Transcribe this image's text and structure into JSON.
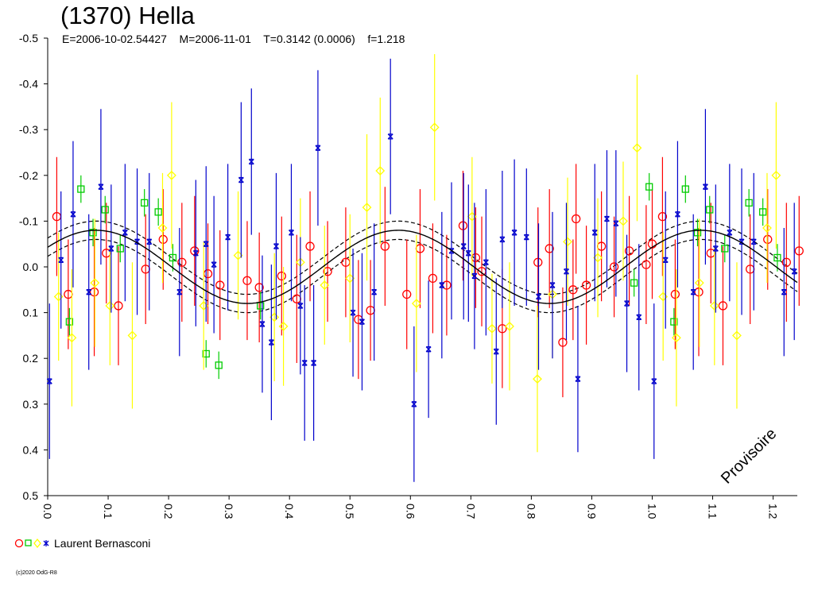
{
  "chart_data": {
    "type": "scatter",
    "title": "(1370) Hella",
    "subtitle": "E=2006-10-02.54427    M=2006-11-01    T=0.3142 (0.0006)    f=1.218",
    "xlabel": "",
    "ylabel": "",
    "xlim": [
      0,
      1.24
    ],
    "ylim": [
      0.5,
      -0.5
    ],
    "y_inverted": true,
    "x_ticks": [
      "0.0",
      "0.1",
      "0.2",
      "0.3",
      "0.4",
      "0.5",
      "0.6",
      "0.7",
      "0.8",
      "0.9",
      "1.0",
      "1.1",
      "1.2"
    ],
    "y_ticks": [
      "-0.5",
      "-0.4",
      "-0.3",
      "-0.2",
      "-0.1",
      "0.0",
      "0.1",
      "0.2",
      "0.3",
      "0.4",
      "0.5"
    ],
    "grid": false,
    "fit_curve": {
      "mean": 0.0,
      "amplitude": 0.08,
      "phase_of_max_brightness": 0.08,
      "cycles_per_phase": 2,
      "envelope": 0.02
    },
    "series": [
      {
        "name": "Laurent Bernasconi",
        "marker": "circle",
        "color": "#ff0000",
        "points": [
          {
            "x": 0.015,
            "y": -0.11,
            "err": 0.13
          },
          {
            "x": 0.034,
            "y": 0.06,
            "err": 0.12
          },
          {
            "x": 0.077,
            "y": 0.055,
            "err": 0.14
          },
          {
            "x": 0.097,
            "y": -0.03,
            "err": 0.11
          },
          {
            "x": 0.117,
            "y": 0.085,
            "err": 0.13
          },
          {
            "x": 0.162,
            "y": 0.005,
            "err": 0.12
          },
          {
            "x": 0.191,
            "y": -0.06,
            "err": 0.11
          },
          {
            "x": 0.222,
            "y": -0.01,
            "err": 0.13
          },
          {
            "x": 0.243,
            "y": -0.035,
            "err": 0.12
          },
          {
            "x": 0.265,
            "y": 0.015,
            "err": 0.11
          },
          {
            "x": 0.285,
            "y": 0.04,
            "err": 0.12
          },
          {
            "x": 0.33,
            "y": 0.03,
            "err": 0.13
          },
          {
            "x": 0.35,
            "y": 0.045,
            "err": 0.12
          },
          {
            "x": 0.387,
            "y": 0.02,
            "err": 0.13
          },
          {
            "x": 0.412,
            "y": 0.07,
            "err": 0.14
          },
          {
            "x": 0.434,
            "y": -0.045,
            "err": 0.12
          },
          {
            "x": 0.463,
            "y": 0.01,
            "err": 0.11
          },
          {
            "x": 0.493,
            "y": -0.01,
            "err": 0.12
          },
          {
            "x": 0.514,
            "y": 0.115,
            "err": 0.13
          },
          {
            "x": 0.534,
            "y": 0.095,
            "err": 0.11
          },
          {
            "x": 0.558,
            "y": -0.045,
            "err": 0.13
          },
          {
            "x": 0.594,
            "y": 0.06,
            "err": 0.12
          },
          {
            "x": 0.616,
            "y": -0.04,
            "err": 0.13
          },
          {
            "x": 0.637,
            "y": 0.025,
            "err": 0.12
          },
          {
            "x": 0.66,
            "y": 0.04,
            "err": 0.11
          },
          {
            "x": 0.687,
            "y": -0.09,
            "err": 0.12
          },
          {
            "x": 0.708,
            "y": -0.02,
            "err": 0.11
          },
          {
            "x": 0.718,
            "y": 0.01,
            "err": 0.12
          },
          {
            "x": 0.752,
            "y": 0.135,
            "err": 0.13
          },
          {
            "x": 0.811,
            "y": -0.01,
            "err": 0.12
          },
          {
            "x": 0.83,
            "y": -0.04,
            "err": 0.13
          },
          {
            "x": 0.852,
            "y": 0.165,
            "err": 0.12
          },
          {
            "x": 0.869,
            "y": 0.05,
            "err": 0.11
          },
          {
            "x": 0.874,
            "y": -0.105,
            "err": 0.12
          },
          {
            "x": 0.891,
            "y": 0.04,
            "err": 0.13
          },
          {
            "x": 0.916,
            "y": -0.045,
            "err": 0.12
          },
          {
            "x": 0.937,
            "y": 0.0,
            "err": 0.11
          },
          {
            "x": 0.962,
            "y": -0.035,
            "err": 0.12
          },
          {
            "x": 0.99,
            "y": -0.005,
            "err": 0.13
          },
          {
            "x": 1.0,
            "y": -0.05,
            "err": 0.12
          },
          {
            "x": 1.017,
            "y": -0.11,
            "err": 0.13
          },
          {
            "x": 1.038,
            "y": 0.06,
            "err": 0.12
          },
          {
            "x": 1.077,
            "y": 0.055,
            "err": 0.14
          },
          {
            "x": 1.097,
            "y": -0.03,
            "err": 0.11
          },
          {
            "x": 1.117,
            "y": 0.085,
            "err": 0.13
          },
          {
            "x": 1.162,
            "y": 0.005,
            "err": 0.12
          },
          {
            "x": 1.191,
            "y": -0.06,
            "err": 0.11
          },
          {
            "x": 1.222,
            "y": -0.01,
            "err": 0.13
          },
          {
            "x": 1.243,
            "y": -0.035,
            "err": 0.12
          }
        ]
      },
      {
        "name": "Laurent Bernasconi",
        "marker": "square",
        "color": "#00cc00",
        "points": [
          {
            "x": 0.036,
            "y": 0.12,
            "err": 0.03
          },
          {
            "x": 0.055,
            "y": -0.17,
            "err": 0.03
          },
          {
            "x": 0.075,
            "y": -0.075,
            "err": 0.03
          },
          {
            "x": 0.095,
            "y": -0.125,
            "err": 0.03
          },
          {
            "x": 0.12,
            "y": -0.04,
            "err": 0.03
          },
          {
            "x": 0.16,
            "y": -0.14,
            "err": 0.03
          },
          {
            "x": 0.183,
            "y": -0.12,
            "err": 0.03
          },
          {
            "x": 0.207,
            "y": -0.02,
            "err": 0.03
          },
          {
            "x": 0.262,
            "y": 0.19,
            "err": 0.03
          },
          {
            "x": 0.283,
            "y": 0.215,
            "err": 0.03
          },
          {
            "x": 0.352,
            "y": 0.085,
            "err": 0.03
          },
          {
            "x": 0.97,
            "y": 0.035,
            "err": 0.03
          },
          {
            "x": 0.995,
            "y": -0.175,
            "err": 0.03
          },
          {
            "x": 1.036,
            "y": 0.12,
            "err": 0.03
          },
          {
            "x": 1.055,
            "y": -0.17,
            "err": 0.03
          },
          {
            "x": 1.075,
            "y": -0.075,
            "err": 0.03
          },
          {
            "x": 1.095,
            "y": -0.125,
            "err": 0.03
          },
          {
            "x": 1.12,
            "y": -0.04,
            "err": 0.03
          },
          {
            "x": 1.16,
            "y": -0.14,
            "err": 0.03
          },
          {
            "x": 1.183,
            "y": -0.12,
            "err": 0.03
          },
          {
            "x": 1.207,
            "y": -0.02,
            "err": 0.03
          }
        ]
      },
      {
        "name": "Laurent Bernasconi",
        "marker": "diamond",
        "color": "#ffff00",
        "points": [
          {
            "x": 0.018,
            "y": 0.065,
            "err": 0.14
          },
          {
            "x": 0.04,
            "y": 0.155,
            "err": 0.15
          },
          {
            "x": 0.078,
            "y": 0.035,
            "err": 0.14
          },
          {
            "x": 0.103,
            "y": 0.085,
            "err": 0.13
          },
          {
            "x": 0.14,
            "y": 0.15,
            "err": 0.16
          },
          {
            "x": 0.19,
            "y": -0.085,
            "err": 0.12
          },
          {
            "x": 0.205,
            "y": -0.2,
            "err": 0.16
          },
          {
            "x": 0.258,
            "y": 0.085,
            "err": 0.14
          },
          {
            "x": 0.315,
            "y": -0.025,
            "err": 0.14
          },
          {
            "x": 0.375,
            "y": 0.11,
            "err": 0.14
          },
          {
            "x": 0.39,
            "y": 0.13,
            "err": 0.13
          },
          {
            "x": 0.418,
            "y": -0.01,
            "err": 0.14
          },
          {
            "x": 0.458,
            "y": 0.04,
            "err": 0.13
          },
          {
            "x": 0.5,
            "y": 0.025,
            "err": 0.14
          },
          {
            "x": 0.528,
            "y": -0.13,
            "err": 0.16
          },
          {
            "x": 0.55,
            "y": -0.21,
            "err": 0.16
          },
          {
            "x": 0.61,
            "y": 0.08,
            "err": 0.15
          },
          {
            "x": 0.64,
            "y": -0.305,
            "err": 0.16
          },
          {
            "x": 0.702,
            "y": -0.11,
            "err": 0.13
          },
          {
            "x": 0.735,
            "y": 0.135,
            "err": 0.12
          },
          {
            "x": 0.764,
            "y": 0.13,
            "err": 0.14
          },
          {
            "x": 0.81,
            "y": 0.245,
            "err": 0.16
          },
          {
            "x": 0.835,
            "y": 0.06,
            "err": 0.14
          },
          {
            "x": 0.86,
            "y": -0.055,
            "err": 0.14
          },
          {
            "x": 0.91,
            "y": -0.02,
            "err": 0.13
          },
          {
            "x": 0.952,
            "y": -0.1,
            "err": 0.13
          },
          {
            "x": 0.975,
            "y": -0.26,
            "err": 0.16
          },
          {
            "x": 1.018,
            "y": 0.065,
            "err": 0.14
          },
          {
            "x": 1.04,
            "y": 0.155,
            "err": 0.15
          },
          {
            "x": 1.078,
            "y": 0.035,
            "err": 0.14
          },
          {
            "x": 1.103,
            "y": 0.085,
            "err": 0.13
          },
          {
            "x": 1.14,
            "y": 0.15,
            "err": 0.16
          },
          {
            "x": 1.19,
            "y": -0.085,
            "err": 0.12
          },
          {
            "x": 1.205,
            "y": -0.2,
            "err": 0.16
          }
        ]
      },
      {
        "name": "Laurent Bernasconi",
        "marker": "star",
        "color": "#0000cc",
        "points": [
          {
            "x": 0.003,
            "y": 0.25,
            "err": 0.17
          },
          {
            "x": 0.022,
            "y": -0.015,
            "err": 0.15
          },
          {
            "x": 0.042,
            "y": -0.115,
            "err": 0.16
          },
          {
            "x": 0.068,
            "y": 0.055,
            "err": 0.17
          },
          {
            "x": 0.088,
            "y": -0.175,
            "err": 0.17
          },
          {
            "x": 0.105,
            "y": -0.04,
            "err": 0.14
          },
          {
            "x": 0.128,
            "y": -0.075,
            "err": 0.15
          },
          {
            "x": 0.148,
            "y": -0.055,
            "err": 0.16
          },
          {
            "x": 0.168,
            "y": -0.055,
            "err": 0.15
          },
          {
            "x": 0.218,
            "y": 0.055,
            "err": 0.14
          },
          {
            "x": 0.245,
            "y": -0.03,
            "err": 0.16
          },
          {
            "x": 0.262,
            "y": -0.05,
            "err": 0.17
          },
          {
            "x": 0.275,
            "y": -0.005,
            "err": 0.15
          },
          {
            "x": 0.298,
            "y": -0.065,
            "err": 0.16
          },
          {
            "x": 0.32,
            "y": -0.19,
            "err": 0.17
          },
          {
            "x": 0.337,
            "y": -0.23,
            "err": 0.16
          },
          {
            "x": 0.355,
            "y": 0.125,
            "err": 0.15
          },
          {
            "x": 0.37,
            "y": 0.165,
            "err": 0.17
          },
          {
            "x": 0.378,
            "y": -0.045,
            "err": 0.16
          },
          {
            "x": 0.403,
            "y": -0.075,
            "err": 0.15
          },
          {
            "x": 0.418,
            "y": 0.085,
            "err": 0.15
          },
          {
            "x": 0.425,
            "y": 0.21,
            "err": 0.17
          },
          {
            "x": 0.44,
            "y": 0.21,
            "err": 0.17
          },
          {
            "x": 0.447,
            "y": -0.26,
            "err": 0.17
          },
          {
            "x": 0.505,
            "y": 0.1,
            "err": 0.14
          },
          {
            "x": 0.52,
            "y": 0.12,
            "err": 0.15
          },
          {
            "x": 0.54,
            "y": 0.055,
            "err": 0.15
          },
          {
            "x": 0.567,
            "y": -0.285,
            "err": 0.17
          },
          {
            "x": 0.606,
            "y": 0.3,
            "err": 0.17
          },
          {
            "x": 0.63,
            "y": 0.18,
            "err": 0.15
          },
          {
            "x": 0.652,
            "y": 0.04,
            "err": 0.16
          },
          {
            "x": 0.668,
            "y": -0.035,
            "err": 0.15
          },
          {
            "x": 0.688,
            "y": -0.045,
            "err": 0.16
          },
          {
            "x": 0.696,
            "y": -0.03,
            "err": 0.15
          },
          {
            "x": 0.706,
            "y": 0.02,
            "err": 0.16
          },
          {
            "x": 0.725,
            "y": -0.01,
            "err": 0.16
          },
          {
            "x": 0.742,
            "y": 0.185,
            "err": 0.16
          },
          {
            "x": 0.752,
            "y": -0.06,
            "err": 0.15
          },
          {
            "x": 0.772,
            "y": -0.075,
            "err": 0.16
          },
          {
            "x": 0.792,
            "y": -0.065,
            "err": 0.15
          },
          {
            "x": 0.812,
            "y": 0.065,
            "err": 0.16
          },
          {
            "x": 0.835,
            "y": 0.04,
            "err": 0.16
          },
          {
            "x": 0.858,
            "y": 0.01,
            "err": 0.15
          },
          {
            "x": 0.877,
            "y": 0.245,
            "err": 0.16
          },
          {
            "x": 0.905,
            "y": -0.075,
            "err": 0.15
          },
          {
            "x": 0.925,
            "y": -0.105,
            "err": 0.15
          },
          {
            "x": 0.94,
            "y": -0.095,
            "err": 0.16
          },
          {
            "x": 0.958,
            "y": 0.08,
            "err": 0.15
          },
          {
            "x": 0.978,
            "y": 0.11,
            "err": 0.16
          },
          {
            "x": 1.003,
            "y": 0.25,
            "err": 0.17
          },
          {
            "x": 1.022,
            "y": -0.015,
            "err": 0.15
          },
          {
            "x": 1.042,
            "y": -0.115,
            "err": 0.16
          },
          {
            "x": 1.068,
            "y": 0.055,
            "err": 0.17
          },
          {
            "x": 1.088,
            "y": -0.175,
            "err": 0.17
          },
          {
            "x": 1.105,
            "y": -0.04,
            "err": 0.14
          },
          {
            "x": 1.128,
            "y": -0.075,
            "err": 0.15
          },
          {
            "x": 1.148,
            "y": -0.055,
            "err": 0.16
          },
          {
            "x": 1.168,
            "y": -0.055,
            "err": 0.15
          },
          {
            "x": 1.218,
            "y": 0.055,
            "err": 0.14
          },
          {
            "x": 1.235,
            "y": 0.01,
            "err": 0.15
          }
        ]
      }
    ]
  },
  "legend": {
    "observer": "Laurent Bernasconi",
    "marker_colors": [
      "#ff0000",
      "#00cc00",
      "#ffff00",
      "#0000cc"
    ]
  },
  "footer": {
    "copyright": "(c)2020 OdG-R8"
  },
  "watermark": "Provisoire"
}
